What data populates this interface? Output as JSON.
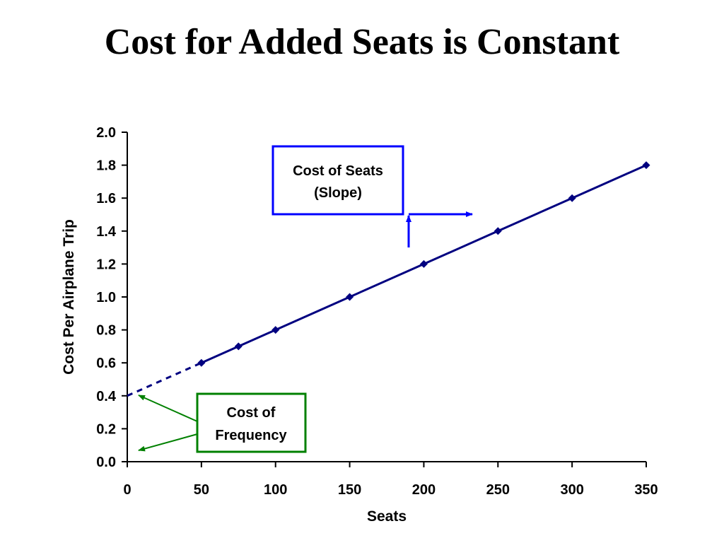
{
  "title": "Cost for Added Seats is Constant",
  "chart_data": {
    "type": "line",
    "title": "Cost for Added Seats is Constant",
    "xlabel": "Seats",
    "ylabel": "Cost Per Airplane Trip",
    "xlim": [
      0,
      350
    ],
    "ylim": [
      0,
      2.0
    ],
    "x_ticks": [
      "0",
      "50",
      "100",
      "150",
      "200",
      "250",
      "300",
      "350"
    ],
    "y_ticks": [
      "0.0",
      "0.2",
      "0.4",
      "0.6",
      "0.8",
      "1.0",
      "1.2",
      "1.4",
      "1.6",
      "1.8",
      "2.0"
    ],
    "grid": false,
    "series": [
      {
        "x": [
          50,
          75,
          100,
          150,
          200,
          250,
          300,
          350
        ],
        "values": [
          0.6,
          0.7,
          0.8,
          1.0,
          1.2,
          1.4,
          1.6,
          1.8
        ],
        "color": "#000080",
        "marker": "diamond"
      }
    ],
    "extrapolation": {
      "x": [
        0,
        50
      ],
      "values": [
        0.4,
        0.6
      ],
      "style": "dashed",
      "color": "#000080"
    },
    "annotations": [
      {
        "lines": [
          "Cost of Seats",
          "(Slope)"
        ],
        "color": "#0000ff"
      },
      {
        "lines": [
          "Cost of",
          "Frequency"
        ],
        "color": "#008000"
      }
    ]
  }
}
